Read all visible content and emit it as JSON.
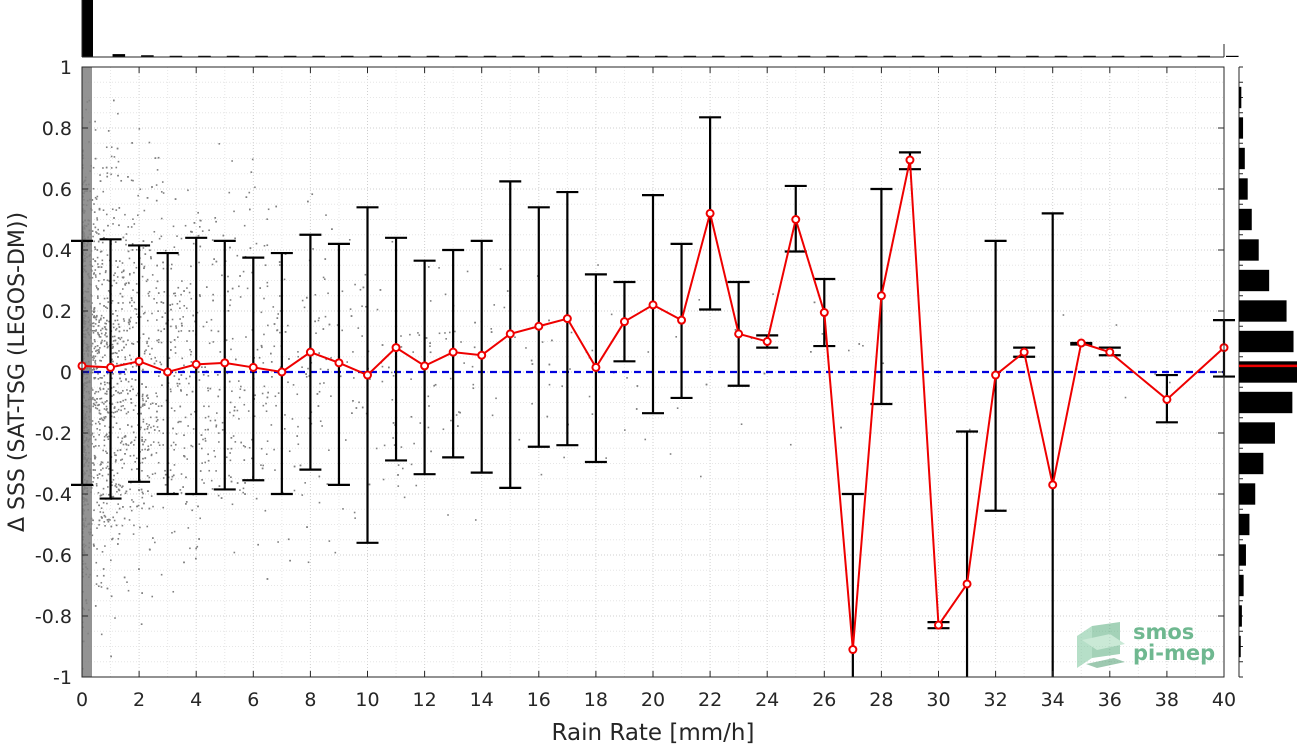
{
  "chart_data": {
    "type": "scatter",
    "xlabel": "Rain Rate [mm/h]",
    "ylabel": "Δ SSS (SAT-TSG (LEGOS-DM))",
    "xlim": [
      0,
      40
    ],
    "ylim": [
      -1,
      1
    ],
    "x_ticks": [
      0,
      2,
      4,
      6,
      8,
      10,
      12,
      14,
      16,
      18,
      20,
      22,
      24,
      26,
      28,
      30,
      32,
      34,
      36,
      38,
      40
    ],
    "y_ticks": [
      -1,
      -0.8,
      -0.6,
      -0.4,
      -0.2,
      0,
      0.2,
      0.4,
      0.6,
      0.8,
      1
    ],
    "grid": true,
    "zero_line": {
      "y": 0,
      "style": "dashed",
      "color": "#0000dd"
    },
    "mean_series": {
      "color": "#ee0000",
      "x": [
        0,
        1,
        2,
        3,
        4,
        5,
        6,
        7,
        8,
        9,
        10,
        11,
        12,
        13,
        14,
        15,
        16,
        17,
        18,
        19,
        20,
        21,
        22,
        23,
        24,
        25,
        26,
        27,
        28,
        29,
        30,
        31,
        32,
        33,
        34,
        35,
        36,
        38,
        40
      ],
      "mean": [
        0.02,
        0.015,
        0.035,
        0.0,
        0.025,
        0.03,
        0.015,
        0.0,
        0.065,
        0.03,
        -0.01,
        0.08,
        0.02,
        0.065,
        0.055,
        0.125,
        0.15,
        0.175,
        0.015,
        0.165,
        0.22,
        0.17,
        0.52,
        0.125,
        0.1,
        0.5,
        0.195,
        -0.91,
        0.25,
        0.695,
        -0.83,
        -0.695,
        -0.01,
        0.065,
        -0.37,
        0.095,
        0.065,
        -0.09,
        0.08
      ],
      "upper": [
        0.43,
        0.435,
        0.415,
        0.39,
        0.44,
        0.43,
        0.375,
        0.39,
        0.45,
        0.42,
        0.54,
        0.44,
        0.365,
        0.4,
        0.43,
        0.625,
        0.54,
        0.59,
        0.32,
        0.295,
        0.58,
        0.42,
        0.835,
        0.295,
        0.12,
        0.61,
        0.305,
        -0.4,
        0.6,
        0.72,
        -0.82,
        -0.195,
        0.43,
        0.08,
        0.52,
        0.095,
        0.08,
        -0.01,
        0.17
      ],
      "lower": [
        -0.37,
        -0.415,
        -0.36,
        -0.4,
        -0.4,
        -0.385,
        -0.355,
        -0.4,
        -0.32,
        -0.37,
        -0.56,
        -0.29,
        -0.335,
        -0.28,
        -0.33,
        -0.38,
        -0.245,
        -0.24,
        -0.295,
        0.035,
        -0.135,
        -0.085,
        0.205,
        -0.045,
        0.08,
        0.395,
        0.085,
        -1.0,
        -0.105,
        0.665,
        -0.84,
        -1.0,
        -0.455,
        0.05,
        -1.0,
        0.09,
        0.055,
        -0.165,
        -0.015
      ]
    },
    "top_histogram": {
      "bins": [
        0,
        1,
        2,
        3,
        4,
        5,
        6,
        7,
        8,
        9,
        10,
        11,
        12,
        13,
        14,
        15,
        16,
        17,
        18,
        19,
        20,
        21,
        22,
        23,
        24,
        25,
        26,
        27,
        28,
        29,
        30,
        31,
        32,
        33,
        34,
        35,
        36,
        37,
        38,
        39,
        40
      ],
      "rel_counts": [
        1.0,
        0.05,
        0.03,
        0.02,
        0.015,
        0.012,
        0.01,
        0.009,
        0.008,
        0.007,
        0.006,
        0.005,
        0.005,
        0.004,
        0.004,
        0.004,
        0.003,
        0.003,
        0.003,
        0.003,
        0.003,
        0.002,
        0.002,
        0.002,
        0.002,
        0.002,
        0.002,
        0.002,
        0.002,
        0.002,
        0.002,
        0.002,
        0.002,
        0.002,
        0.002,
        0.002,
        0.002,
        0.002,
        0.002,
        0.002,
        0.002
      ]
    },
    "right_histogram": {
      "centers": [
        0.9,
        0.8,
        0.7,
        0.6,
        0.5,
        0.4,
        0.3,
        0.2,
        0.1,
        0.0,
        -0.1,
        -0.2,
        -0.3,
        -0.4,
        -0.5,
        -0.6,
        -0.7,
        -0.8,
        -0.9
      ],
      "rel_counts": [
        0.04,
        0.07,
        0.1,
        0.15,
        0.22,
        0.34,
        0.52,
        0.82,
        0.94,
        1.0,
        0.92,
        0.62,
        0.42,
        0.28,
        0.18,
        0.12,
        0.08,
        0.05,
        0.03
      ],
      "mean_marker": 0.02,
      "mean_marker_color": "#ee0000"
    },
    "scatter_density": {
      "color": "#808080",
      "x_anchor": [
        0,
        2,
        4,
        6,
        8,
        10,
        12,
        14,
        16,
        18,
        20,
        24,
        28,
        32,
        36,
        40
      ],
      "rel_density": [
        1.0,
        0.55,
        0.38,
        0.28,
        0.2,
        0.14,
        0.1,
        0.08,
        0.06,
        0.04,
        0.03,
        0.02,
        0.012,
        0.01,
        0.006,
        0.004
      ],
      "y_spread": [
        1.0,
        0.9,
        0.85,
        0.8,
        0.75,
        0.7,
        0.65,
        0.6,
        0.55,
        0.5,
        0.5,
        0.5,
        0.5,
        0.5,
        0.5,
        0.5
      ]
    }
  },
  "logo": {
    "line1": "smos",
    "line2": "pi-mep",
    "color": "#6fb890"
  }
}
